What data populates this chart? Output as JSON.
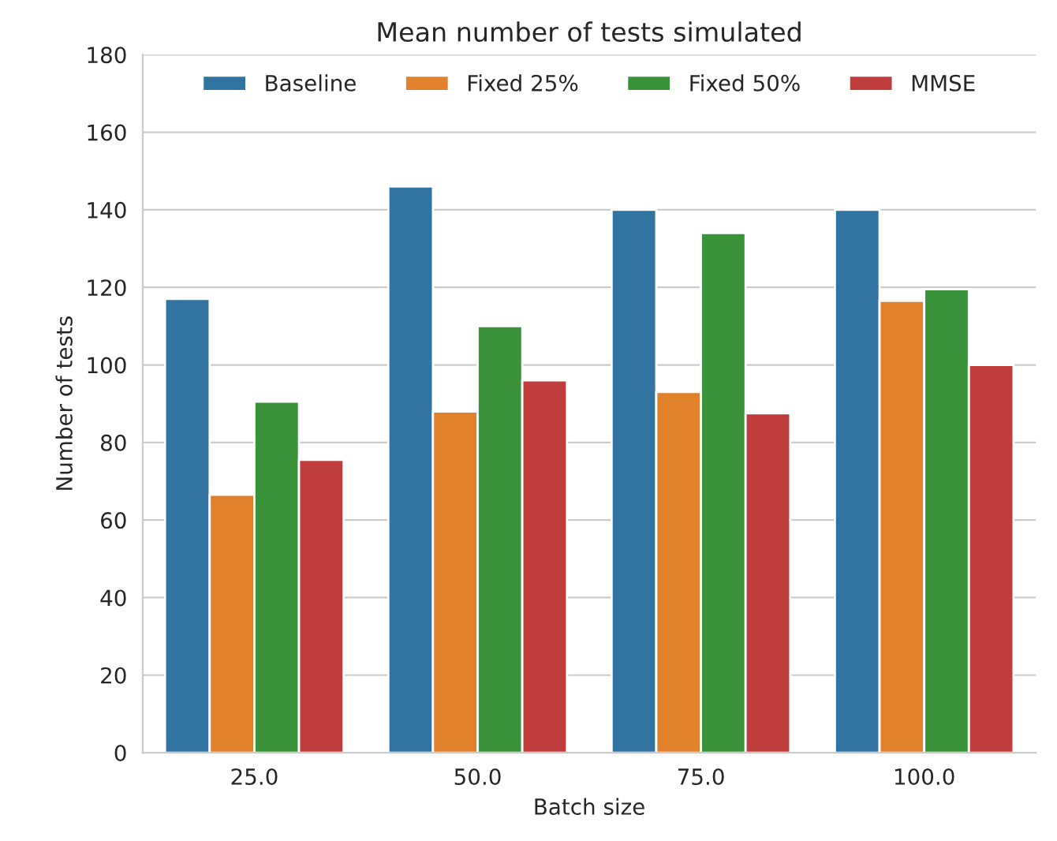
{
  "chart_data": {
    "type": "bar",
    "title": "Mean number of tests simulated",
    "xlabel": "Batch size",
    "ylabel": "Number of tests",
    "categories": [
      "25.0",
      "50.0",
      "75.0",
      "100.0"
    ],
    "series": [
      {
        "name": "Baseline",
        "color": "#3274a1",
        "values": [
          117,
          146,
          140,
          140
        ]
      },
      {
        "name": "Fixed 25%",
        "color": "#e1812c",
        "values": [
          66.5,
          88,
          93,
          116.5
        ]
      },
      {
        "name": "Fixed 50%",
        "color": "#3a923a",
        "values": [
          90.5,
          110,
          134,
          119.5
        ]
      },
      {
        "name": "MMSE",
        "color": "#c03d3e",
        "values": [
          75.5,
          96,
          87.5,
          100
        ]
      }
    ],
    "ylim": [
      0,
      180
    ],
    "yticks": [
      0,
      20,
      40,
      60,
      80,
      100,
      120,
      140,
      160,
      180
    ],
    "grid": "y",
    "legend": "top"
  }
}
